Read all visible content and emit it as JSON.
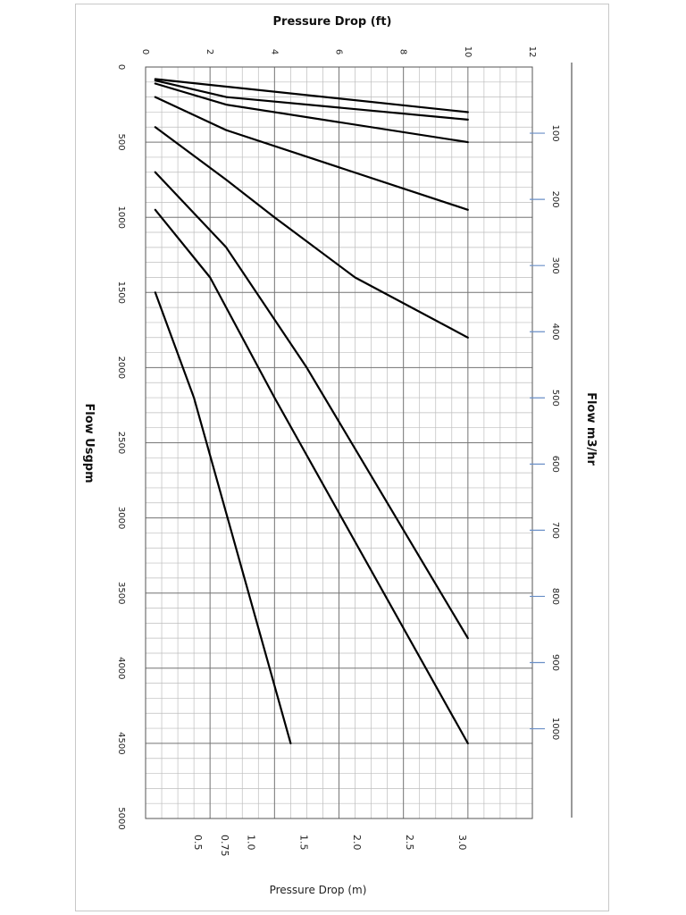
{
  "chart_data": {
    "type": "line",
    "orientation": "rotated 90° clockwise (flow runs down the page, pressure drop runs left to right)",
    "title_top": "Pressure Drop (ft)",
    "xlabel_left": "Flow Usgpm",
    "xlabel_right": "Flow m3/hr",
    "ylabel_bottom": "Pressure Drop (m)",
    "flow_gpm_range": [
      0,
      5000
    ],
    "pressure_ft_range": [
      0,
      12
    ],
    "flow_gpm_ticks": [
      "0",
      "500",
      "1000",
      "1500",
      "2000",
      "2500",
      "3000",
      "3500",
      "4000",
      "4500",
      "5000"
    ],
    "pressure_ft_ticks": [
      "0",
      "2",
      "4",
      "6",
      "8",
      "10",
      "12"
    ],
    "flow_m3hr_ticks": [
      "100",
      "200",
      "300",
      "400",
      "500",
      "600",
      "700",
      "800",
      "900",
      "1000"
    ],
    "pressure_m_ticks": [
      "0.5",
      "0.75",
      "1.0",
      "1.5",
      "2.0",
      "2.5",
      "3.0"
    ],
    "grid": true,
    "series": [
      {
        "points": [
          [
            80,
            0.3
          ],
          [
            300,
            10.0
          ]
        ]
      },
      {
        "points": [
          [
            90,
            0.3
          ],
          [
            200,
            2.5
          ],
          [
            350,
            10.0
          ]
        ]
      },
      {
        "points": [
          [
            110,
            0.3
          ],
          [
            250,
            2.5
          ],
          [
            500,
            10.0
          ]
        ]
      },
      {
        "points": [
          [
            200,
            0.3
          ],
          [
            420,
            2.5
          ],
          [
            950,
            10.0
          ]
        ]
      },
      {
        "points": [
          [
            400,
            0.3
          ],
          [
            750,
            2.5
          ],
          [
            1000,
            4.0
          ],
          [
            1400,
            6.5
          ],
          [
            1800,
            10.0
          ]
        ]
      },
      {
        "points": [
          [
            700,
            0.3
          ],
          [
            1200,
            2.5
          ],
          [
            2000,
            5.0
          ],
          [
            3800,
            10.0
          ]
        ]
      },
      {
        "points": [
          [
            950,
            0.3
          ],
          [
            1400,
            2.0
          ],
          [
            2200,
            4.0
          ],
          [
            4500,
            10.0
          ]
        ]
      },
      {
        "points": [
          [
            1500,
            0.3
          ],
          [
            2200,
            1.5
          ],
          [
            4500,
            4.5
          ]
        ]
      }
    ]
  }
}
